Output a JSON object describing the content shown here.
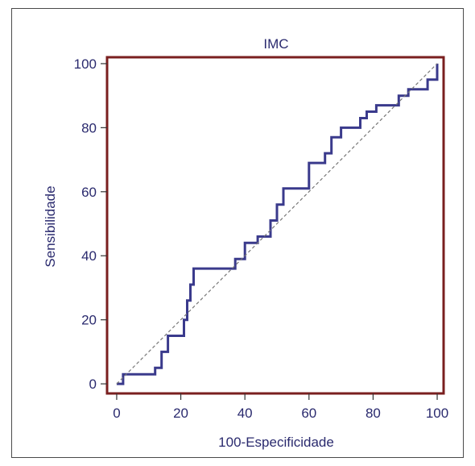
{
  "chart_data": {
    "type": "line",
    "title": "IMC",
    "xlabel": "100-Especificidade",
    "ylabel": "Sensibilidade",
    "xlim": [
      -3,
      102
    ],
    "ylim": [
      -3,
      102
    ],
    "xticks": [
      0,
      20,
      40,
      60,
      80,
      100
    ],
    "yticks": [
      0,
      20,
      40,
      60,
      80,
      100
    ],
    "grid": false,
    "colors": {
      "roc": "#3a3a8c",
      "frame": "#7a1f1f",
      "reference": "#777777",
      "text": "#2a2a6e"
    },
    "series": [
      {
        "style": "step",
        "x": [
          0,
          2,
          2,
          12,
          12,
          14,
          14,
          16,
          16,
          21,
          21,
          22,
          22,
          23,
          23,
          24,
          24,
          37,
          37,
          40,
          40,
          44,
          44,
          48,
          48,
          50,
          50,
          52,
          52,
          60,
          60,
          65,
          65,
          67,
          67,
          70,
          70,
          76,
          76,
          78,
          78,
          81,
          81,
          88,
          88,
          91,
          91,
          97,
          97,
          100,
          100
        ],
        "y": [
          0,
          0,
          3,
          3,
          5,
          5,
          10,
          10,
          15,
          15,
          20,
          20,
          26,
          26,
          31,
          31,
          36,
          36,
          39,
          39,
          44,
          44,
          46,
          46,
          51,
          51,
          56,
          56,
          61,
          61,
          69,
          69,
          72,
          72,
          77,
          77,
          80,
          80,
          83,
          83,
          85,
          85,
          87,
          87,
          90,
          90,
          92,
          92,
          95,
          95,
          100
        ]
      },
      {
        "style": "dashed",
        "x": [
          0,
          100
        ],
        "y": [
          0,
          100
        ]
      }
    ]
  }
}
